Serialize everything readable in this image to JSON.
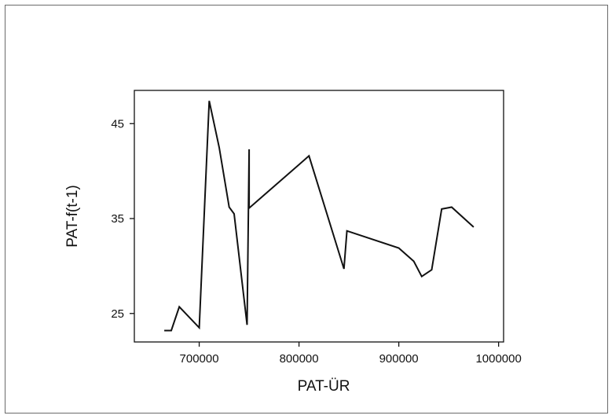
{
  "chart_data": {
    "type": "line",
    "title": "",
    "xlabel": "PAT-ÜR",
    "ylabel": "PAT-f(t-1)",
    "xlim": [
      635000,
      1005000
    ],
    "ylim": [
      22.0,
      48.5
    ],
    "xticks": [
      700000,
      800000,
      900000,
      1000000
    ],
    "xtick_labels": [
      "700000",
      "800000",
      "900000",
      "1000000"
    ],
    "yticks": [
      25,
      35,
      45
    ],
    "ytick_labels": [
      "25",
      "35",
      "45"
    ],
    "grid": false,
    "legend": "none",
    "line_color": "#111111",
    "series": [
      {
        "x": [
          665000,
          672000,
          680000,
          690000,
          700000,
          710000,
          720000,
          730000,
          735000,
          748000,
          750000,
          750000,
          810000,
          845000,
          848000,
          900000,
          915000,
          923000,
          933000,
          943000,
          953000,
          975000
        ],
        "y": [
          23.2,
          23.2,
          25.7,
          24.6,
          23.5,
          47.4,
          42.5,
          36.2,
          35.5,
          23.8,
          42.3,
          36.1,
          41.6,
          29.7,
          33.7,
          31.9,
          30.5,
          28.9,
          29.6,
          36.0,
          36.2,
          34.1
        ]
      }
    ]
  }
}
